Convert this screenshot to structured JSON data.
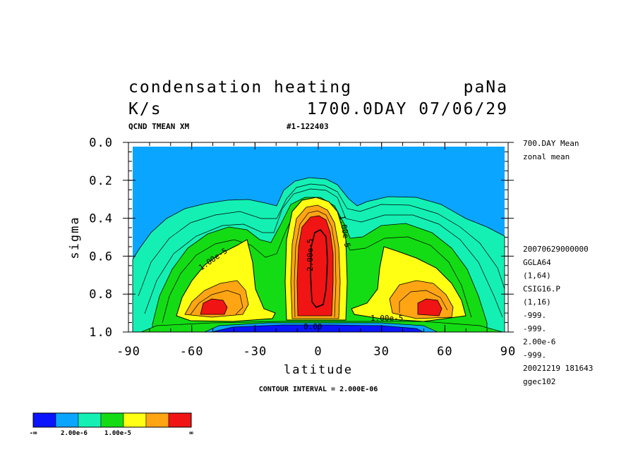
{
  "chart_data": {
    "type": "contour",
    "title_line1": "condensation heating",
    "title_right1": "paNa",
    "title_line2": "K/s",
    "title_right2": "1700.0DAY 07/06/29",
    "subtitle_left": "QCND TMEAN XM",
    "subtitle_mid": "#1-122403",
    "xlabel": "latitude",
    "ylabel": "sigma",
    "xlim": [
      -90,
      90
    ],
    "ylim": [
      1.0,
      0.0
    ],
    "x_ticks": [
      "-90",
      "-60",
      "-30",
      "0",
      "30",
      "60",
      "90"
    ],
    "y_ticks": [
      "0.0",
      "0.2",
      "0.4",
      "0.6",
      "0.8",
      "1.0"
    ],
    "contour_interval_text": "CONTOUR INTERVAL = 2.000E-06",
    "contour_labels": [
      "1.00e-5",
      "2.00e-5",
      "1.00e-5",
      "1.00e-5",
      "1.00e-5",
      "0.00"
    ],
    "side_info_top": [
      "700.DAY Mean",
      "zonal mean"
    ],
    "side_info_bottom": [
      "20070629000000",
      "GGLA64",
      "(1,64)",
      "CSIG16.P",
      "(1,16)",
      "-999.",
      "-999.",
      "2.00e-6",
      "-999.",
      "20021219 181643",
      "ggec102"
    ],
    "colorbar": {
      "colors": [
        "#0a14ff",
        "#0aa5ff",
        "#14f0b4",
        "#14dc14",
        "#ffff14",
        "#ffa514",
        "#f01414"
      ],
      "labels": [
        "-∞",
        "2.00e-6",
        "1.00e-5",
        "∞"
      ]
    },
    "legend_position": "bottom-left"
  }
}
